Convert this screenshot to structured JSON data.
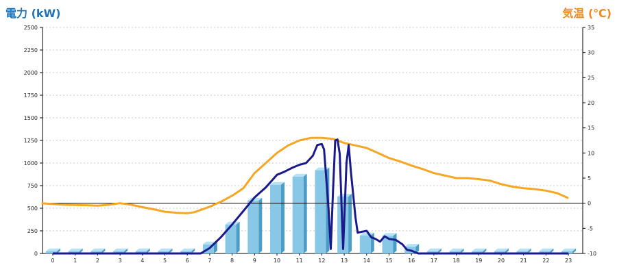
{
  "chart_data": {
    "type": "bar+line",
    "title_left": "電力 (kW)",
    "title_right": "気温 (℃)",
    "colors": {
      "bars": "#88c8e6",
      "bars_side": "#4a9dc4",
      "bars_top": "#b7e2f5",
      "power_line": "#1a1a8c",
      "temp_line": "#f5a623",
      "grid": "#c8c8c8",
      "zero_line": "#000000",
      "title_left": "#1f73b7",
      "title_right": "#f08a1d"
    },
    "x_ticks": [
      "0",
      "1",
      "2",
      "3",
      "4",
      "5",
      "6",
      "7",
      "8",
      "9",
      "10",
      "11",
      "12",
      "13",
      "14",
      "15",
      "16",
      "17",
      "18",
      "19",
      "20",
      "21",
      "22",
      "23"
    ],
    "y_left": {
      "min": 0,
      "max": 2500,
      "ticks": [
        0,
        250,
        500,
        750,
        1000,
        1250,
        1500,
        1750,
        2000,
        2250,
        2500
      ]
    },
    "y_right": {
      "min": -10,
      "max": 35,
      "ticks": [
        -10,
        -5,
        0,
        5,
        10,
        15,
        20,
        25,
        30,
        35
      ]
    },
    "grid": true,
    "bar_series": {
      "name": "",
      "values": [
        25,
        25,
        25,
        25,
        25,
        25,
        25,
        100,
        320,
        585,
        760,
        850,
        920,
        630,
        200,
        195,
        75,
        25,
        25,
        25,
        25,
        25,
        25,
        25
      ]
    },
    "power_line": {
      "name": "",
      "points": [
        [
          0,
          0
        ],
        [
          1,
          0
        ],
        [
          2,
          0
        ],
        [
          3,
          0
        ],
        [
          4,
          0
        ],
        [
          5,
          0
        ],
        [
          6,
          0
        ],
        [
          6.6,
          0
        ],
        [
          7,
          60
        ],
        [
          7.5,
          180
        ],
        [
          8,
          320
        ],
        [
          8.5,
          470
        ],
        [
          9,
          620
        ],
        [
          9.5,
          730
        ],
        [
          10,
          870
        ],
        [
          10.3,
          900
        ],
        [
          10.7,
          950
        ],
        [
          11,
          980
        ],
        [
          11.3,
          1000
        ],
        [
          11.6,
          1080
        ],
        [
          11.8,
          1200
        ],
        [
          12,
          1210
        ],
        [
          12.1,
          1150
        ],
        [
          12.3,
          500
        ],
        [
          12.4,
          50
        ],
        [
          12.5,
          700
        ],
        [
          12.6,
          1250
        ],
        [
          12.7,
          1260
        ],
        [
          12.8,
          1100
        ],
        [
          12.9,
          400
        ],
        [
          12.95,
          50
        ],
        [
          13.1,
          1000
        ],
        [
          13.2,
          1200
        ],
        [
          13.3,
          900
        ],
        [
          13.5,
          400
        ],
        [
          13.6,
          230
        ],
        [
          13.8,
          240
        ],
        [
          14,
          250
        ],
        [
          14.2,
          180
        ],
        [
          14.4,
          160
        ],
        [
          14.6,
          130
        ],
        [
          14.8,
          190
        ],
        [
          15,
          160
        ],
        [
          15.3,
          150
        ],
        [
          15.6,
          100
        ],
        [
          15.8,
          40
        ],
        [
          16,
          30
        ],
        [
          16.3,
          0
        ],
        [
          17,
          0
        ],
        [
          18,
          0
        ],
        [
          19,
          0
        ],
        [
          20,
          0
        ],
        [
          21,
          0
        ],
        [
          22,
          0
        ],
        [
          23,
          0
        ]
      ]
    },
    "temp_line": {
      "name": "",
      "points": [
        [
          -0.5,
          0
        ],
        [
          0.5,
          -0.3
        ],
        [
          1.5,
          -0.4
        ],
        [
          2,
          -0.5
        ],
        [
          2.5,
          -0.3
        ],
        [
          3,
          0
        ],
        [
          3.5,
          -0.3
        ],
        [
          4,
          -0.8
        ],
        [
          4.5,
          -1.2
        ],
        [
          5,
          -1.7
        ],
        [
          5.5,
          -1.9
        ],
        [
          6,
          -2
        ],
        [
          6.3,
          -1.8
        ],
        [
          7,
          -0.7
        ],
        [
          7.5,
          0.3
        ],
        [
          8,
          1.5
        ],
        [
          8.5,
          3
        ],
        [
          9,
          6
        ],
        [
          9.5,
          8
        ],
        [
          10,
          10
        ],
        [
          10.5,
          11.5
        ],
        [
          11,
          12.5
        ],
        [
          11.5,
          13
        ],
        [
          12,
          13
        ],
        [
          12.5,
          12.8
        ],
        [
          13,
          12
        ],
        [
          13.5,
          11.5
        ],
        [
          14,
          11
        ],
        [
          14.5,
          10
        ],
        [
          15,
          9
        ],
        [
          15.5,
          8.3
        ],
        [
          16,
          7.5
        ],
        [
          16.5,
          6.8
        ],
        [
          17,
          6
        ],
        [
          17.5,
          5.5
        ],
        [
          18,
          5
        ],
        [
          18.5,
          5
        ],
        [
          19,
          4.8
        ],
        [
          19.5,
          4.5
        ],
        [
          20,
          3.8
        ],
        [
          20.5,
          3.3
        ],
        [
          21,
          3
        ],
        [
          21.5,
          2.8
        ],
        [
          22,
          2.5
        ],
        [
          22.5,
          2
        ],
        [
          23,
          1
        ]
      ]
    }
  }
}
